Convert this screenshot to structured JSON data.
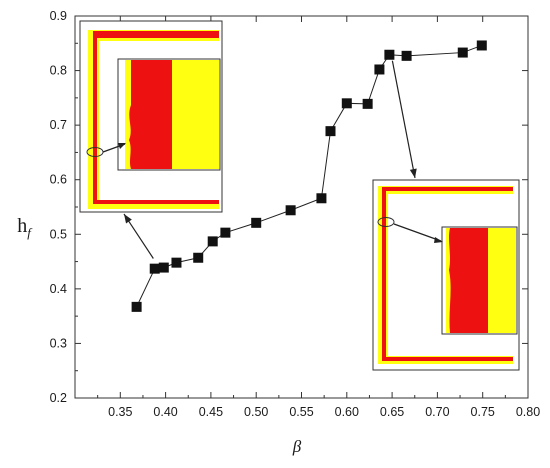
{
  "chart_data": {
    "type": "scatter",
    "title": "",
    "xlabel": "β",
    "ylabel": "h",
    "ylabel_subscript": "f",
    "xlim": [
      0.3,
      0.8
    ],
    "ylim": [
      0.2,
      0.9
    ],
    "x_ticks": [
      "0.35",
      "0.40",
      "0.45",
      "0.50",
      "0.55",
      "0.60",
      "0.65",
      "0.70",
      "0.75",
      "0.80"
    ],
    "x_tick_values": [
      0.35,
      0.4,
      0.45,
      0.5,
      0.55,
      0.6,
      0.65,
      0.7,
      0.75,
      0.8
    ],
    "y_ticks": [
      "0.2",
      "0.3",
      "0.4",
      "0.5",
      "0.6",
      "0.7",
      "0.8",
      "0.9"
    ],
    "y_tick_values": [
      0.2,
      0.3,
      0.4,
      0.5,
      0.6,
      0.7,
      0.8,
      0.9
    ],
    "grid": false,
    "legend": "none",
    "marker": "filled-square",
    "line": "solid-connected",
    "series": [
      {
        "x": [
          0.368,
          0.388,
          0.398,
          0.412,
          0.436,
          0.452,
          0.466,
          0.5,
          0.538,
          0.572,
          0.582,
          0.6,
          0.623,
          0.636,
          0.647,
          0.666,
          0.728,
          0.749
        ],
        "y": [
          0.367,
          0.437,
          0.439,
          0.448,
          0.457,
          0.487,
          0.503,
          0.521,
          0.544,
          0.566,
          0.689,
          0.74,
          0.739,
          0.802,
          0.829,
          0.827,
          0.833,
          0.846
        ]
      }
    ],
    "insets": [
      {
        "position": "upper-left",
        "arrow_from_x": 0.392,
        "arrow_from_y": 0.441,
        "colors": {
          "outer": "#ffffff",
          "red": "#ee1111",
          "yellow": "#ffff11"
        }
      },
      {
        "position": "lower-right",
        "arrow_from_x": 0.647,
        "arrow_from_y": 0.829,
        "colors": {
          "outer": "#ffffff",
          "red": "#ee1111",
          "yellow": "#ffff11"
        }
      }
    ]
  }
}
